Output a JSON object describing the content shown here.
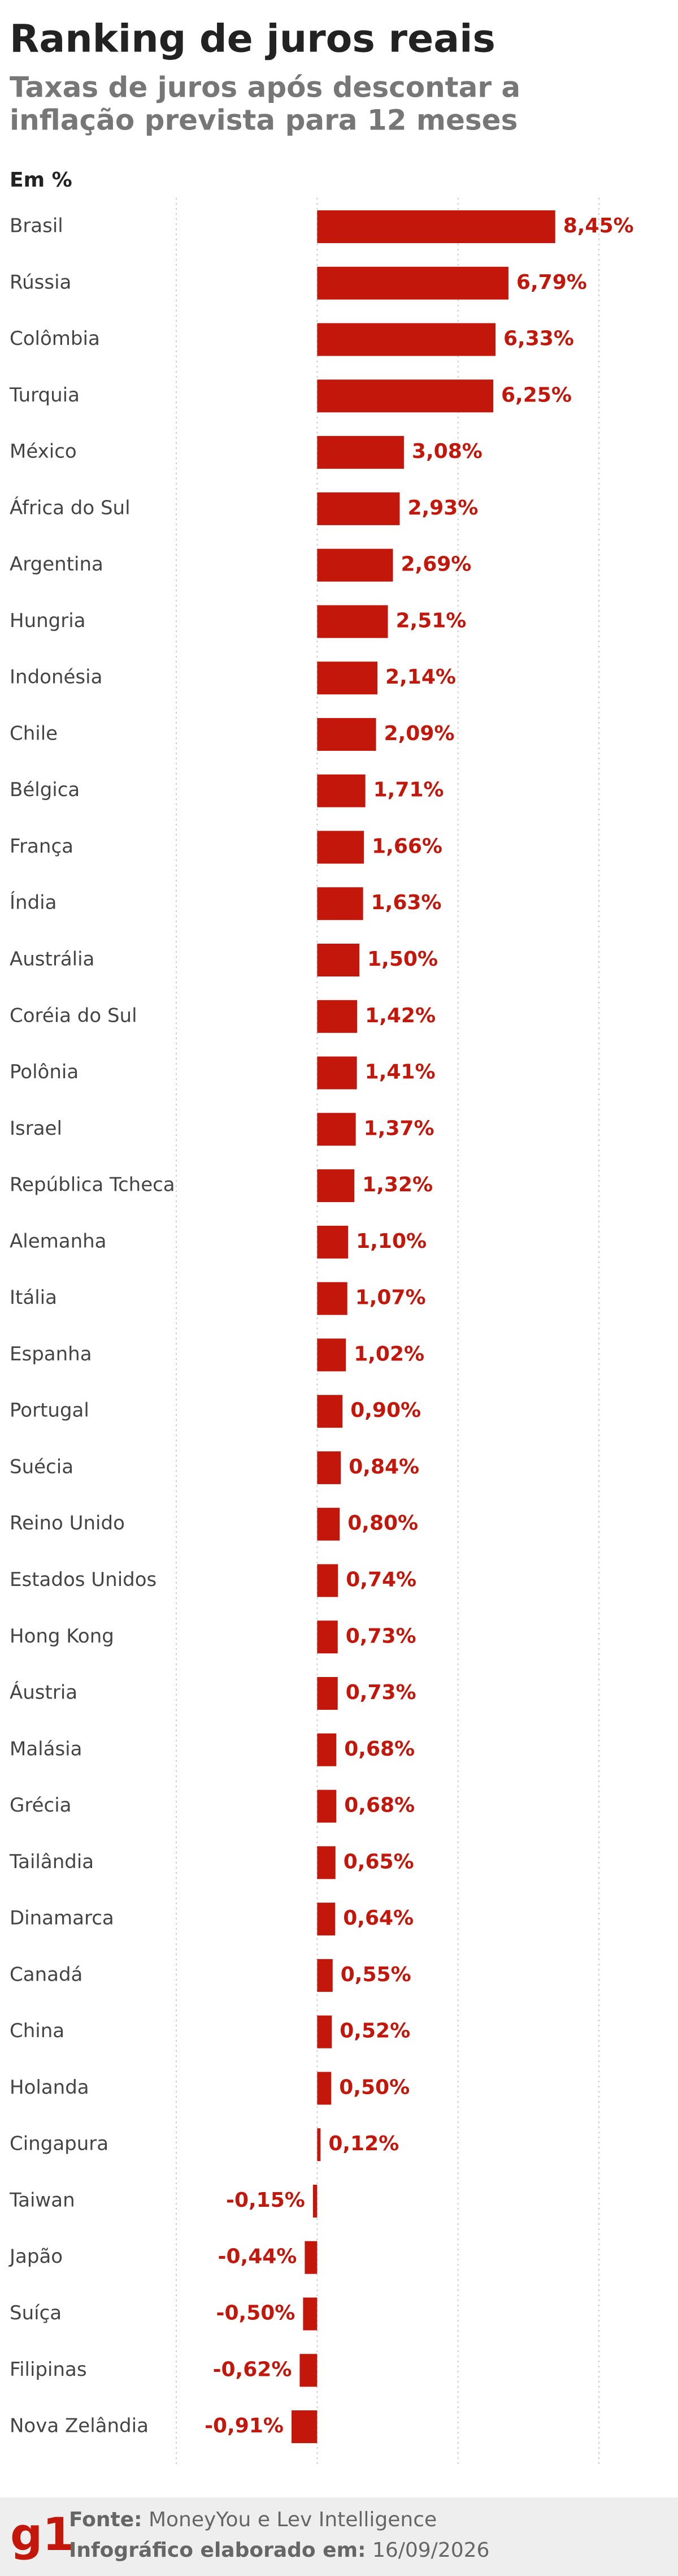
{
  "chart_data": {
    "type": "hbar",
    "title": "Ranking de juros reais",
    "subtitle": [
      "Taxas de juros após descontar a",
      "inflação prevista para 12 meses"
    ],
    "unit_label": "Em %",
    "categories": [
      "Brasil",
      "Rússia",
      "Colômbia",
      "Turquia",
      "México",
      "África do Sul",
      "Argentina",
      "Hungria",
      "Indonésia",
      "Chile",
      "Bélgica",
      "França",
      "Índia",
      "Austrália",
      "Coréia do Sul",
      "Polônia",
      "Israel",
      "República Tcheca",
      "Alemanha",
      "Itália",
      "Espanha",
      "Portugal",
      "Suécia",
      "Reino Unido",
      "Estados Unidos",
      "Hong Kong",
      "Áustria",
      "Malásia",
      "Grécia",
      "Tailândia",
      "Dinamarca",
      "Canadá",
      "China",
      "Holanda",
      "Cingapura",
      "Taiwan",
      "Japão",
      "Suíça",
      "Filipinas",
      "Nova Zelândia"
    ],
    "values": [
      8.45,
      6.79,
      6.33,
      6.25,
      3.08,
      2.93,
      2.69,
      2.51,
      2.14,
      2.09,
      1.71,
      1.66,
      1.63,
      1.5,
      1.42,
      1.41,
      1.37,
      1.32,
      1.1,
      1.07,
      1.02,
      0.9,
      0.84,
      0.8,
      0.74,
      0.73,
      0.73,
      0.68,
      0.68,
      0.65,
      0.64,
      0.55,
      0.52,
      0.5,
      0.12,
      -0.15,
      -0.44,
      -0.5,
      -0.62,
      -0.91
    ],
    "value_labels": [
      "8,45%",
      "6,79%",
      "6,33%",
      "6,25%",
      "3,08%",
      "2,93%",
      "2,69%",
      "2,51%",
      "2,14%",
      "2,09%",
      "1,71%",
      "1,66%",
      "1,63%",
      "1,50%",
      "1,42%",
      "1,41%",
      "1,37%",
      "1,32%",
      "1,10%",
      "1,07%",
      "1,02%",
      "0,90%",
      "0,84%",
      "0,80%",
      "0,74%",
      "0,73%",
      "0,73%",
      "0,68%",
      "0,68%",
      "0,65%",
      "0,64%",
      "0,55%",
      "0,52%",
      "0,50%",
      "0,12%",
      "-0,15%",
      "-0,44%",
      "-0,50%",
      "-0,62%",
      "-0,91%"
    ],
    "color": "#c4170c",
    "xlim": [
      -5,
      10
    ],
    "xticks": [
      -5,
      0,
      5,
      10
    ],
    "grid": true
  },
  "footer": {
    "logo": "g1",
    "source_label": "Fonte:",
    "source": "MoneyYou e Lev Intelligence",
    "date_label": "Infográfico elaborado em:",
    "date": "16/09/2026"
  }
}
